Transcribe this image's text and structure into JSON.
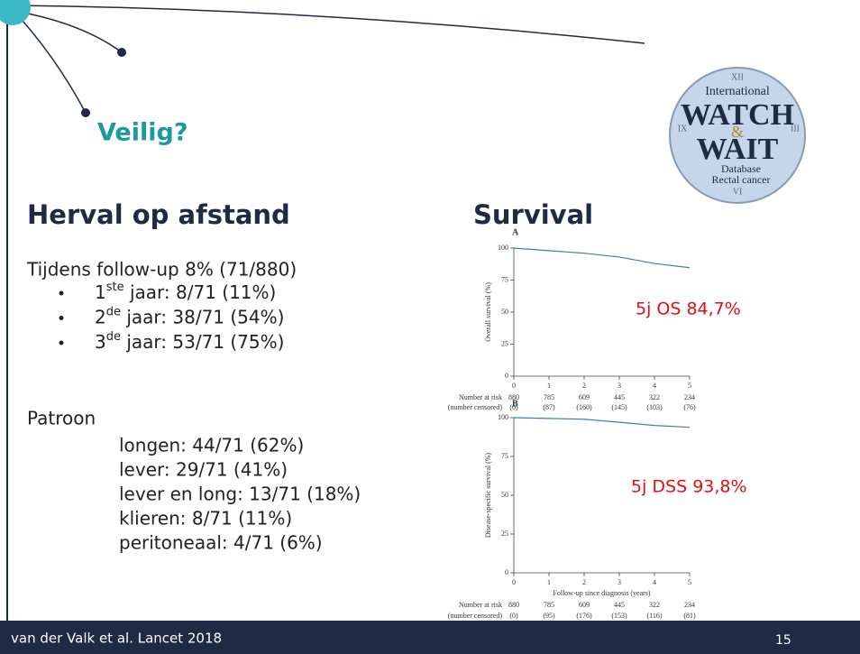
{
  "header": {
    "title": "Veilig?"
  },
  "left": {
    "heading": "Herval op afstand",
    "intro": "Tijdens follow-up 8% (71/880)",
    "years": [
      {
        "num": "1",
        "sup": "ste",
        "text": " jaar: 8/71 (11%)"
      },
      {
        "num": "2",
        "sup": "de",
        "text": " jaar: 38/71 (54%)"
      },
      {
        "num": "3",
        "sup": "de",
        "text": " jaar: 53/71 (75%)"
      }
    ],
    "pattern_title": "Patroon",
    "pattern": [
      "longen: 44/71 (62%)",
      "lever: 29/71 (41%)",
      "lever en long: 13/71 (18%)",
      "klieren: 8/71 (11%)",
      "peritoneaal: 4/71 (6%)"
    ]
  },
  "right": {
    "heading": "Survival",
    "panels": [
      {
        "label": "A",
        "ylabel": "Overall survival (%)",
        "ylim": [
          0,
          100
        ],
        "yticks": [
          0,
          25,
          50,
          75,
          100
        ],
        "xlim": [
          0,
          5
        ],
        "xticks": [
          0,
          1,
          2,
          3,
          4,
          5
        ],
        "curve_x": [
          0,
          1,
          2,
          3,
          4,
          5
        ],
        "curve_values": [
          100,
          98,
          96,
          93,
          88,
          84.7
        ],
        "risk_label": "Number at risk",
        "censored_label": "(number censored)",
        "at_risk": [
          880,
          785,
          609,
          445,
          322,
          234
        ],
        "censored": [
          "(0)",
          "(87)",
          "(160)",
          "(145)",
          "(103)",
          "(76)"
        ],
        "annotation": "5j OS 84,7%"
      },
      {
        "label": "B",
        "ylabel": "Disease-specific survival (%)",
        "xlabel": "Follow-up since diagnosis (years)",
        "ylim": [
          0,
          100
        ],
        "yticks": [
          0,
          25,
          50,
          75,
          100
        ],
        "xlim": [
          0,
          5
        ],
        "xticks": [
          0,
          1,
          2,
          3,
          4,
          5
        ],
        "curve_x": [
          0,
          1,
          2,
          3,
          4,
          5
        ],
        "curve_values": [
          100,
          99.5,
          99,
          97,
          95,
          93.8
        ],
        "risk_label": "Number at risk",
        "censored_label": "(number censored)",
        "at_risk": [
          880,
          785,
          609,
          445,
          322,
          234
        ],
        "censored": [
          "(0)",
          "(95)",
          "(176)",
          "(153)",
          "(116)",
          "(81)"
        ],
        "annotation": "5j DSS 93,8%"
      }
    ]
  },
  "logo": {
    "top": "International",
    "word1": "WATCH",
    "amp": "&",
    "word2": "WAIT",
    "line1": "Database",
    "line2": "Rectal cancer",
    "n12": "XII",
    "n3": "III",
    "n6": "VI",
    "n9": "IX"
  },
  "footer": {
    "citation": "van der Valk et al. Lancet 2018",
    "page": "15"
  }
}
